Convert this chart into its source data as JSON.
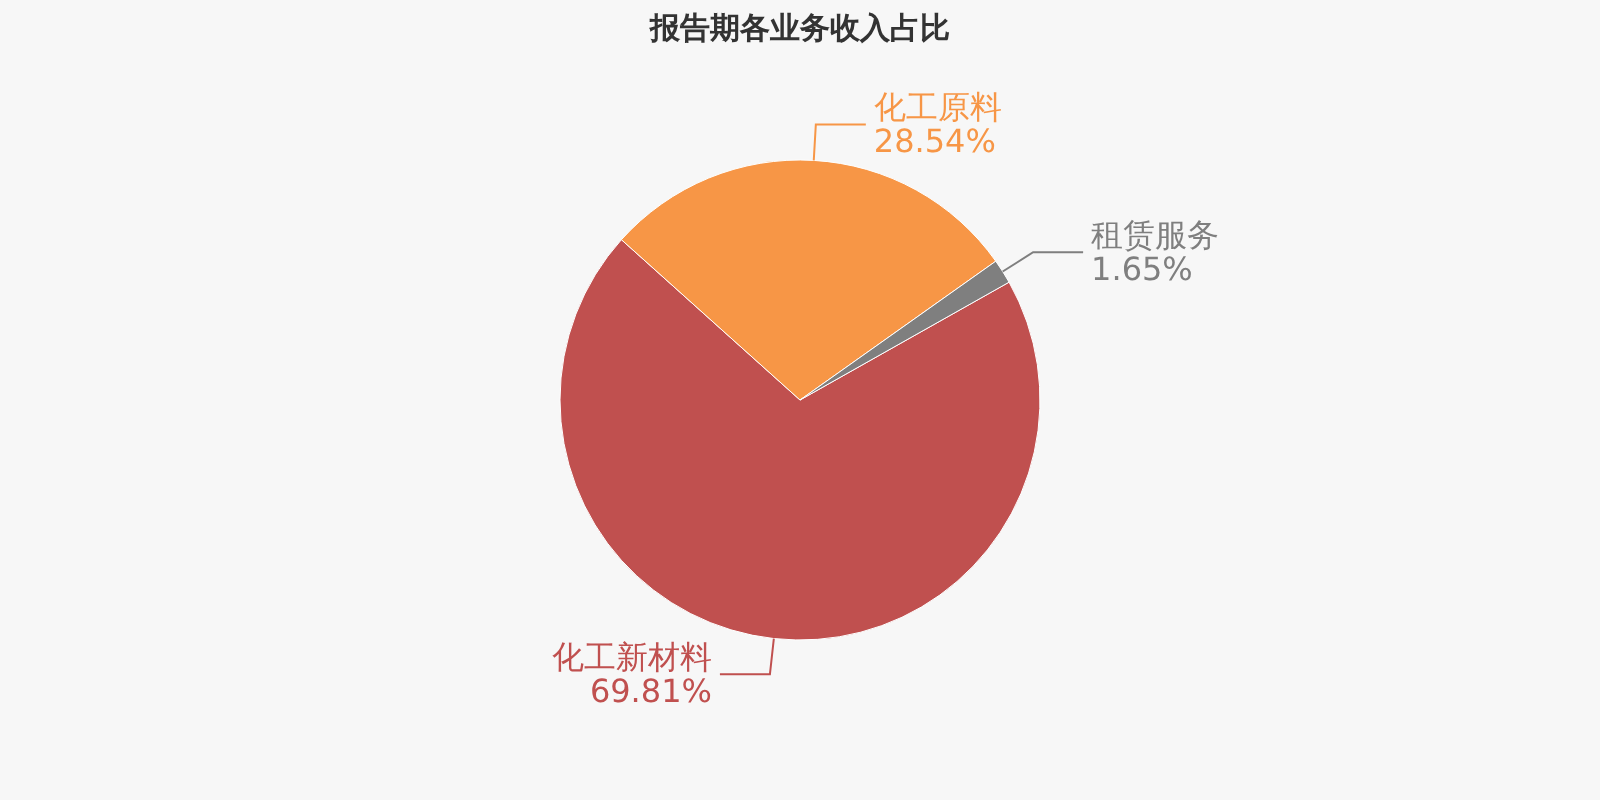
{
  "chart_data": {
    "type": "pie",
    "title": "报告期各业务收入占比",
    "categories": [
      "化工新材料",
      "化工原料",
      "租赁服务"
    ],
    "values": [
      69.81,
      28.54,
      1.65
    ],
    "value_labels": [
      "69.81%",
      "28.54%",
      "1.65%"
    ],
    "colors": [
      "#c0504f",
      "#f79646",
      "#7f7f7f"
    ],
    "legend": false
  }
}
